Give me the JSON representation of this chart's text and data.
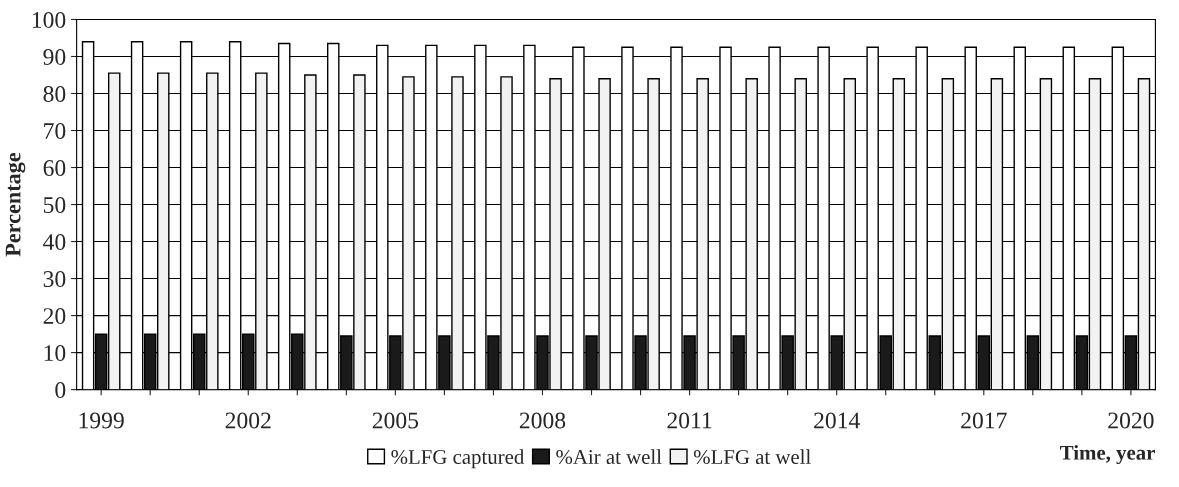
{
  "chart_data": {
    "type": "bar",
    "xlabel": "Time, year",
    "ylabel": "Percentage",
    "categories": [
      "1999",
      null,
      null,
      "2002",
      null,
      null,
      "2005",
      null,
      null,
      "2008",
      null,
      null,
      "2011",
      null,
      null,
      "2014",
      null,
      null,
      "2017",
      null,
      null,
      "2020"
    ],
    "series": [
      {
        "name": "%LFG captured",
        "color": "#ffffff",
        "values": [
          94,
          94,
          94,
          94,
          93.5,
          93.5,
          93,
          93,
          93,
          93,
          92.5,
          92.5,
          92.5,
          92.5,
          92.5,
          92.5,
          92.5,
          92.5,
          92.5,
          92.5,
          92.5,
          92.5
        ]
      },
      {
        "name": "%Air at well",
        "color": "#1a1a1a",
        "values": [
          15,
          15,
          15,
          15,
          15,
          14.5,
          14.5,
          14.5,
          14.5,
          14.5,
          14.5,
          14.5,
          14.5,
          14.5,
          14.5,
          14.5,
          14.5,
          14.5,
          14.5,
          14.5,
          14.5,
          14.5
        ]
      },
      {
        "name": "%LFG at well",
        "color": "#f2f2f2",
        "values": [
          85.5,
          85.5,
          85.5,
          85.5,
          85,
          85,
          84.5,
          84.5,
          84.5,
          84,
          84,
          84,
          84,
          84,
          84,
          84,
          84,
          84,
          84,
          84,
          84,
          84
        ]
      }
    ],
    "ylim": [
      0,
      100
    ],
    "yticks": [
      0,
      10,
      20,
      30,
      40,
      50,
      60,
      70,
      80,
      90,
      100
    ],
    "grid": "y",
    "legend": "bottom"
  }
}
